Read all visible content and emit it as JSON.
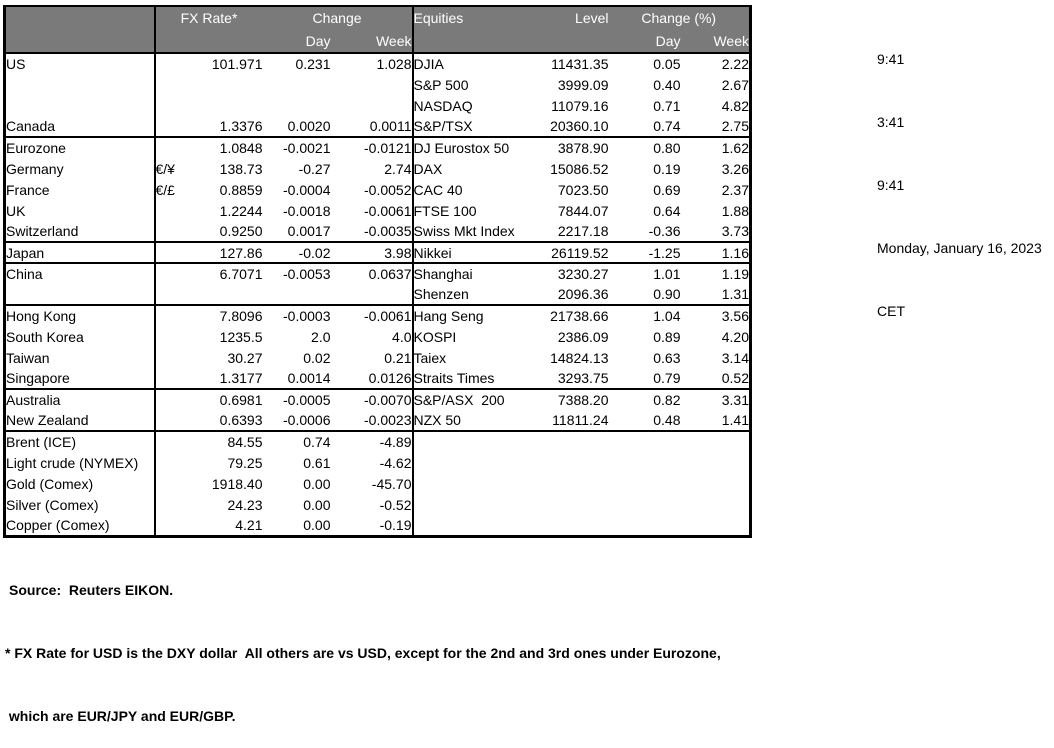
{
  "info_panel": {
    "lines": [
      "9:41",
      "3:41",
      "9:41",
      "Monday, January 16, 2023",
      "CET"
    ]
  },
  "table": {
    "header": {
      "fx_rate": "FX Rate*",
      "change": "Change",
      "day": "Day",
      "week": "Week",
      "equities": "Equities",
      "level": "Level",
      "change_pct": "Change (%)"
    },
    "rows": [
      {
        "name": "US",
        "pair": "",
        "fx": "101.971",
        "fx_day": "0.231",
        "fx_week": "1.028",
        "eq": "DJIA",
        "level": "11431.35",
        "eq_day": "0.05",
        "eq_week": "2.22",
        "indent": false,
        "sep": false
      },
      {
        "name": "",
        "pair": "",
        "fx": "",
        "fx_day": "",
        "fx_week": "",
        "eq": "S&P 500",
        "level": "3999.09",
        "eq_day": "0.40",
        "eq_week": "2.67",
        "indent": false,
        "sep": false
      },
      {
        "name": "",
        "pair": "",
        "fx": "",
        "fx_day": "",
        "fx_week": "",
        "eq": "NASDAQ",
        "level": "11079.16",
        "eq_day": "0.71",
        "eq_week": "4.82",
        "indent": false,
        "sep": false
      },
      {
        "name": "Canada",
        "pair": "",
        "fx": "1.3376",
        "fx_day": "0.0020",
        "fx_week": "0.0011",
        "eq": "S&P/TSX",
        "level": "20360.10",
        "eq_day": "0.74",
        "eq_week": "2.75",
        "indent": false,
        "sep": false
      },
      {
        "name": "Eurozone",
        "pair": "",
        "fx": "1.0848",
        "fx_day": "-0.0021",
        "fx_week": "-0.0121",
        "eq": "DJ Eurostox 50",
        "level": "3878.90",
        "eq_day": "0.80",
        "eq_week": "1.62",
        "indent": false,
        "sep": true
      },
      {
        "name": "Germany",
        "pair": "€/¥",
        "fx": "138.73",
        "fx_day": "-0.27",
        "fx_week": "2.74",
        "eq": "DAX",
        "level": "15086.52",
        "eq_day": "0.19",
        "eq_week": "3.26",
        "indent": true,
        "sep": false
      },
      {
        "name": "France",
        "pair": "€/£",
        "fx": "0.8859",
        "fx_day": "-0.0004",
        "fx_week": "-0.0052",
        "eq": "CAC 40",
        "level": "7023.50",
        "eq_day": "0.69",
        "eq_week": "2.37",
        "indent": true,
        "sep": false
      },
      {
        "name": "UK",
        "pair": "",
        "fx": "1.2244",
        "fx_day": "-0.0018",
        "fx_week": "-0.0061",
        "eq": "FTSE 100",
        "level": "7844.07",
        "eq_day": "0.64",
        "eq_week": "1.88",
        "indent": false,
        "sep": false
      },
      {
        "name": "Switzerland",
        "pair": "",
        "fx": "0.9250",
        "fx_day": "0.0017",
        "fx_week": "-0.0035",
        "eq": "Swiss Mkt Index",
        "level": "2217.18",
        "eq_day": "-0.36",
        "eq_week": "3.73",
        "indent": false,
        "sep": false
      },
      {
        "name": "Japan",
        "pair": "",
        "fx": "127.86",
        "fx_day": "-0.02",
        "fx_week": "3.98",
        "eq": "Nikkei",
        "level": "26119.52",
        "eq_day": "-1.25",
        "eq_week": "1.16",
        "indent": false,
        "sep": true
      },
      {
        "name": "China",
        "pair": "",
        "fx": "6.7071",
        "fx_day": "-0.0053",
        "fx_week": "0.0637",
        "eq": "Shanghai",
        "level": "3230.27",
        "eq_day": "1.01",
        "eq_week": "1.19",
        "indent": false,
        "sep": true
      },
      {
        "name": "",
        "pair": "",
        "fx": "",
        "fx_day": "",
        "fx_week": "",
        "eq": "Shenzen",
        "level": "2096.36",
        "eq_day": "0.90",
        "eq_week": "1.31",
        "indent": false,
        "sep": false
      },
      {
        "name": "Hong Kong",
        "pair": "",
        "fx": "7.8096",
        "fx_day": "-0.0003",
        "fx_week": "-0.0061",
        "eq": "Hang Seng",
        "level": "21738.66",
        "eq_day": "1.04",
        "eq_week": "3.56",
        "indent": false,
        "sep": true
      },
      {
        "name": "South Korea",
        "pair": "",
        "fx": "1235.5",
        "fx_day": "2.0",
        "fx_week": "4.0",
        "eq": "KOSPI",
        "level": "2386.09",
        "eq_day": "0.89",
        "eq_week": "4.20",
        "indent": false,
        "sep": false
      },
      {
        "name": "Taiwan",
        "pair": "",
        "fx": "30.27",
        "fx_day": "0.02",
        "fx_week": "0.21",
        "eq": "Taiex",
        "level": "14824.13",
        "eq_day": "0.63",
        "eq_week": "3.14",
        "indent": false,
        "sep": false
      },
      {
        "name": "Singapore",
        "pair": "",
        "fx": "1.3177",
        "fx_day": "0.0014",
        "fx_week": "0.0126",
        "eq": "Straits Times",
        "level": "3293.75",
        "eq_day": "0.79",
        "eq_week": "0.52",
        "indent": false,
        "sep": false
      },
      {
        "name": "Australia",
        "pair": "",
        "fx": "0.6981",
        "fx_day": "-0.0005",
        "fx_week": "-0.0070",
        "eq": "S&P/ASX  200",
        "level": "7388.20",
        "eq_day": "0.82",
        "eq_week": "3.31",
        "indent": false,
        "sep": true
      },
      {
        "name": "New Zealand",
        "pair": "",
        "fx": "0.6393",
        "fx_day": "-0.0006",
        "fx_week": "-0.0023",
        "eq": "NZX 50",
        "level": "11811.24",
        "eq_day": "0.48",
        "eq_week": "1.41",
        "indent": false,
        "sep": false
      },
      {
        "name": "Brent (ICE)",
        "pair": "",
        "fx": "84.55",
        "fx_day": "0.74",
        "fx_week": "-4.89",
        "eq": "",
        "level": "",
        "eq_day": "",
        "eq_week": "",
        "indent": false,
        "sep": true
      },
      {
        "name": "Light crude (NYMEX)",
        "pair": "",
        "fx": "79.25",
        "fx_day": "0.61",
        "fx_week": "-4.62",
        "eq": "",
        "level": "",
        "eq_day": "",
        "eq_week": "",
        "indent": false,
        "sep": false
      },
      {
        "name": "Gold (Comex)",
        "pair": "",
        "fx": "1918.40",
        "fx_day": "0.00",
        "fx_week": "-45.70",
        "eq": "",
        "level": "",
        "eq_day": "",
        "eq_week": "",
        "indent": false,
        "sep": false
      },
      {
        "name": "Silver (Comex)",
        "pair": "",
        "fx": "24.23",
        "fx_day": "0.00",
        "fx_week": "-0.52",
        "eq": "",
        "level": "",
        "eq_day": "",
        "eq_week": "",
        "indent": false,
        "sep": false
      },
      {
        "name": "Copper (Comex)",
        "pair": "",
        "fx": "4.21",
        "fx_day": "0.00",
        "fx_week": "-0.19",
        "eq": "",
        "level": "",
        "eq_day": "",
        "eq_week": "",
        "indent": false,
        "sep": false
      }
    ]
  },
  "footer": {
    "source": "Source:  Reuters EIKON.",
    "note1": "* FX Rate for USD is the DXY dollar  All others are vs USD, except for the 2nd and 3rd ones under Eurozone,",
    "note2": " which are EUR/JPY and EUR/GBP."
  },
  "colors": {
    "header_bg": "#7a7a7a",
    "header_text": "#ffffff",
    "border": "#000000",
    "background": "#ffffff"
  }
}
